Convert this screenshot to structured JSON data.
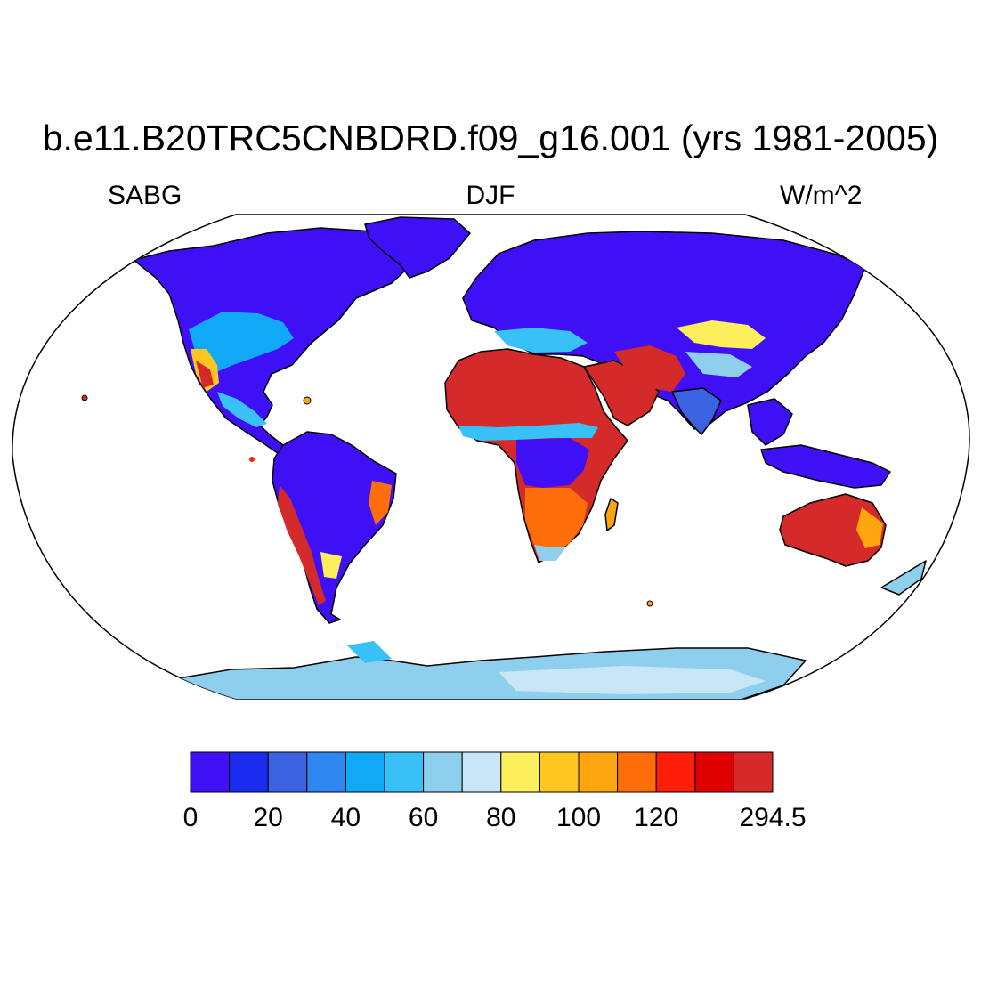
{
  "title": "b.e11.B20TRC5CNBDRD.f09_g16.001 (yrs 1981-2005)",
  "left_string": "SABG",
  "center_string": "DJF",
  "right_string": "W/m^2",
  "map": {
    "projection": "robinson",
    "colors": {
      "ocean": "#ffffff",
      "coastline": "#000000"
    }
  },
  "colorbar": {
    "colors": [
      "#3f10f5",
      "#1b2cf0",
      "#3b62e0",
      "#2e86f0",
      "#10a8f7",
      "#38c1f7",
      "#8fcfee",
      "#c8e6f5",
      "#fdee5c",
      "#ffc520",
      "#ffa510",
      "#ff6e0a",
      "#ff1e0a",
      "#e00000",
      "#d42a2a"
    ],
    "labels": [
      "0",
      "20",
      "40",
      "60",
      "80",
      "100",
      "120",
      "294.5"
    ]
  }
}
